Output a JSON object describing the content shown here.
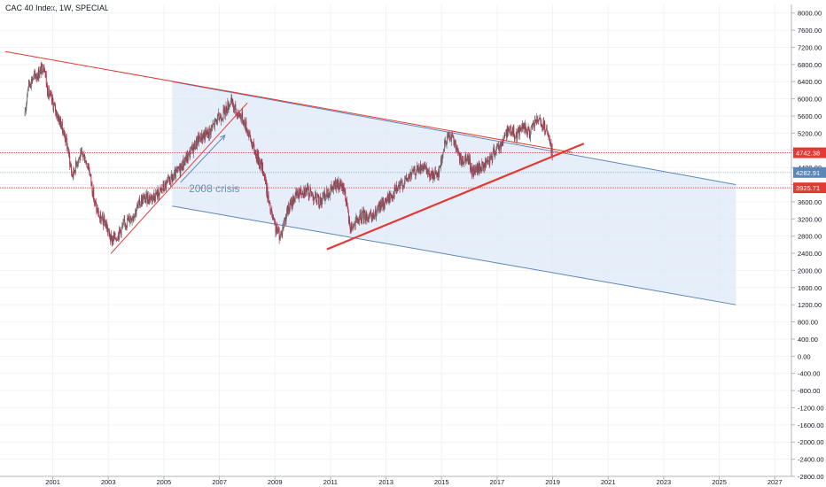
{
  "chart_title": "CAC 40 Index, 1W, SPECIAL",
  "annotation_label": "2008 crisis",
  "colors": {
    "background": "#ffffff",
    "grid": "#f0f3fa",
    "axis_text": "#131722",
    "candle_up": "#6d6d6d",
    "candle_down": "#b0304a",
    "trend_red": "#e53935",
    "channel_line": "#5b86b8",
    "channel_fill": "#dde9f7",
    "annotation_text": "#6a94b8",
    "level_red": "#e53935",
    "level_blue": "#5b86b8"
  },
  "chart_data": {
    "type": "candlestick",
    "title": "CAC 40 Index, 1W, SPECIAL",
    "x_range": [
      1999.1,
      2027.6
    ],
    "y_range": [
      -2800,
      8200
    ],
    "grid": true,
    "x_ticks": [
      "2001",
      "2003",
      "2005",
      "2007",
      "2009",
      "2011",
      "2013",
      "2015",
      "2017",
      "2019",
      "2021",
      "2023",
      "2025",
      "2027"
    ],
    "x_tick_values": [
      2001,
      2003,
      2005,
      2007,
      2009,
      2011,
      2013,
      2015,
      2017,
      2019,
      2021,
      2023,
      2025,
      2027
    ],
    "y_ticks": [
      "8000.00",
      "7600.00",
      "7200.00",
      "6800.00",
      "6400.00",
      "6000.00",
      "5600.00",
      "5200.00",
      "4800.00",
      "4400.00",
      "4000.00",
      "3600.00",
      "3200.00",
      "2800.00",
      "2400.00",
      "2000.00",
      "1600.00",
      "1200.00",
      "800.00",
      "400.00",
      "0.00",
      "-400.00",
      "-800.00",
      "-1200.00",
      "-1600.00",
      "-2000.00",
      "-2400.00",
      "-2800.00"
    ],
    "y_tick_values": [
      8000,
      7600,
      7200,
      6800,
      6400,
      6000,
      5600,
      5200,
      4800,
      4400,
      4000,
      3600,
      3200,
      2800,
      2400,
      2000,
      1600,
      1200,
      800,
      400,
      0,
      -400,
      -800,
      -1200,
      -1600,
      -2000,
      -2400,
      -2800
    ],
    "price_path": [
      [
        2000.0,
        5600
      ],
      [
        2000.1,
        6300
      ],
      [
        2000.3,
        6500
      ],
      [
        2000.5,
        6600
      ],
      [
        2000.7,
        6800
      ],
      [
        2000.8,
        6200
      ],
      [
        2001.0,
        5900
      ],
      [
        2001.3,
        5400
      ],
      [
        2001.5,
        5000
      ],
      [
        2001.7,
        4200
      ],
      [
        2001.9,
        4600
      ],
      [
        2002.1,
        4700
      ],
      [
        2002.3,
        4400
      ],
      [
        2002.5,
        3600
      ],
      [
        2002.7,
        3200
      ],
      [
        2002.9,
        3100
      ],
      [
        2003.1,
        2700
      ],
      [
        2003.3,
        2800
      ],
      [
        2003.6,
        3100
      ],
      [
        2003.9,
        3300
      ],
      [
        2004.2,
        3650
      ],
      [
        2004.5,
        3700
      ],
      [
        2004.8,
        3800
      ],
      [
        2005.1,
        4000
      ],
      [
        2005.4,
        4200
      ],
      [
        2005.7,
        4500
      ],
      [
        2006.0,
        4800
      ],
      [
        2006.3,
        5100
      ],
      [
        2006.6,
        5200
      ],
      [
        2006.9,
        5500
      ],
      [
        2007.2,
        5700
      ],
      [
        2007.4,
        5950
      ],
      [
        2007.6,
        5700
      ],
      [
        2007.8,
        5600
      ],
      [
        2008.0,
        5300
      ],
      [
        2008.2,
        4900
      ],
      [
        2008.4,
        4600
      ],
      [
        2008.6,
        4300
      ],
      [
        2008.8,
        3500
      ],
      [
        2009.0,
        3000
      ],
      [
        2009.2,
        2800
      ],
      [
        2009.4,
        3300
      ],
      [
        2009.7,
        3700
      ],
      [
        2010.0,
        3900
      ],
      [
        2010.3,
        3800
      ],
      [
        2010.6,
        3600
      ],
      [
        2010.9,
        3800
      ],
      [
        2011.2,
        4000
      ],
      [
        2011.5,
        3900
      ],
      [
        2011.7,
        3000
      ],
      [
        2011.9,
        3100
      ],
      [
        2012.2,
        3300
      ],
      [
        2012.5,
        3200
      ],
      [
        2012.8,
        3500
      ],
      [
        2013.1,
        3700
      ],
      [
        2013.4,
        3900
      ],
      [
        2013.7,
        4100
      ],
      [
        2014.0,
        4300
      ],
      [
        2014.3,
        4400
      ],
      [
        2014.6,
        4200
      ],
      [
        2014.9,
        4300
      ],
      [
        2015.1,
        4900
      ],
      [
        2015.3,
        5200
      ],
      [
        2015.5,
        4900
      ],
      [
        2015.7,
        4500
      ],
      [
        2015.9,
        4700
      ],
      [
        2016.1,
        4300
      ],
      [
        2016.4,
        4400
      ],
      [
        2016.7,
        4500
      ],
      [
        2016.9,
        4800
      ],
      [
        2017.1,
        4900
      ],
      [
        2017.4,
        5300
      ],
      [
        2017.7,
        5150
      ],
      [
        2017.9,
        5350
      ],
      [
        2018.2,
        5200
      ],
      [
        2018.4,
        5500
      ],
      [
        2018.6,
        5400
      ],
      [
        2018.8,
        5200
      ],
      [
        2018.95,
        4800
      ],
      [
        2019.0,
        4750
      ]
    ],
    "drawings": {
      "channel_upper": [
        [
          2005.3,
          6400
        ],
        [
          2025.6,
          4000
        ]
      ],
      "channel_lower": [
        [
          2005.3,
          3500
        ],
        [
          2025.6,
          1200
        ]
      ],
      "resistance_red": [
        [
          1999.3,
          7100
        ],
        [
          2019.7,
          4750
        ]
      ],
      "support_2003": [
        [
          2003.1,
          2400
        ],
        [
          2008.0,
          5900
        ]
      ],
      "support_2012": [
        [
          2010.9,
          2500
        ],
        [
          2020.1,
          4950
        ]
      ],
      "crisis_arrow": [
        [
          2005.6,
          4050
        ],
        [
          2007.2,
          5150
        ]
      ],
      "crisis_label_at": [
        2005.9,
        3820
      ]
    },
    "price_levels": [
      {
        "value": 4742.38,
        "label": "4742.38",
        "style": "red"
      },
      {
        "value": 4282.91,
        "label": "4282.91",
        "style": "blue"
      },
      {
        "value": 3925.71,
        "label": "3925.71",
        "style": "red"
      }
    ]
  }
}
